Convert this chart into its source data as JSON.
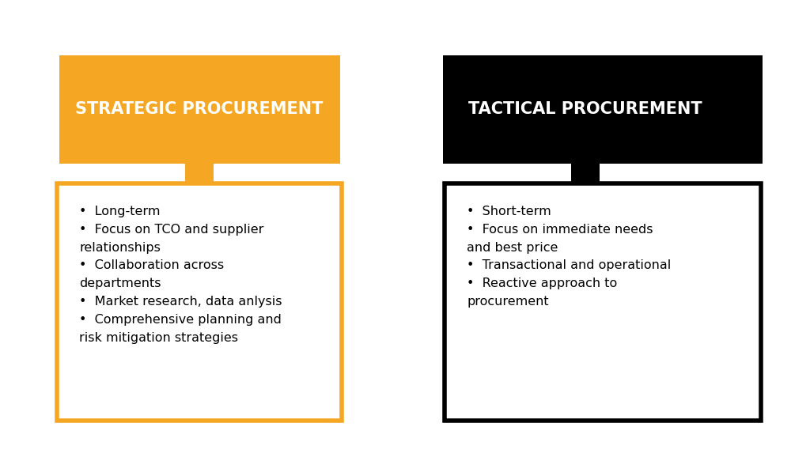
{
  "background_color": "#ffffff",
  "left_header": "STRATEGIC PROCUREMENT",
  "right_header": "TACTICAL PROCUREMENT",
  "left_header_bg": "#F5A623",
  "right_header_bg": "#000000",
  "left_header_color": "#ffffff",
  "right_header_color": "#ffffff",
  "left_box_border": "#F5A623",
  "right_box_border": "#000000",
  "left_bullets": [
    "Long-term",
    "Focus on TCO and supplier\nrelationships",
    "Collaboration across\ndepartments",
    "Market research, data anlysis",
    "Comprehensive planning and\nrisk mitigation strategies"
  ],
  "right_bullets": [
    "Short-term",
    "Focus on immediate needs\nand best price",
    "Transactional and operational",
    "Reactive approach to\nprocurement"
  ],
  "bullet_color": "#000000",
  "left_connector_color": "#F5A623",
  "right_connector_color": "#000000"
}
